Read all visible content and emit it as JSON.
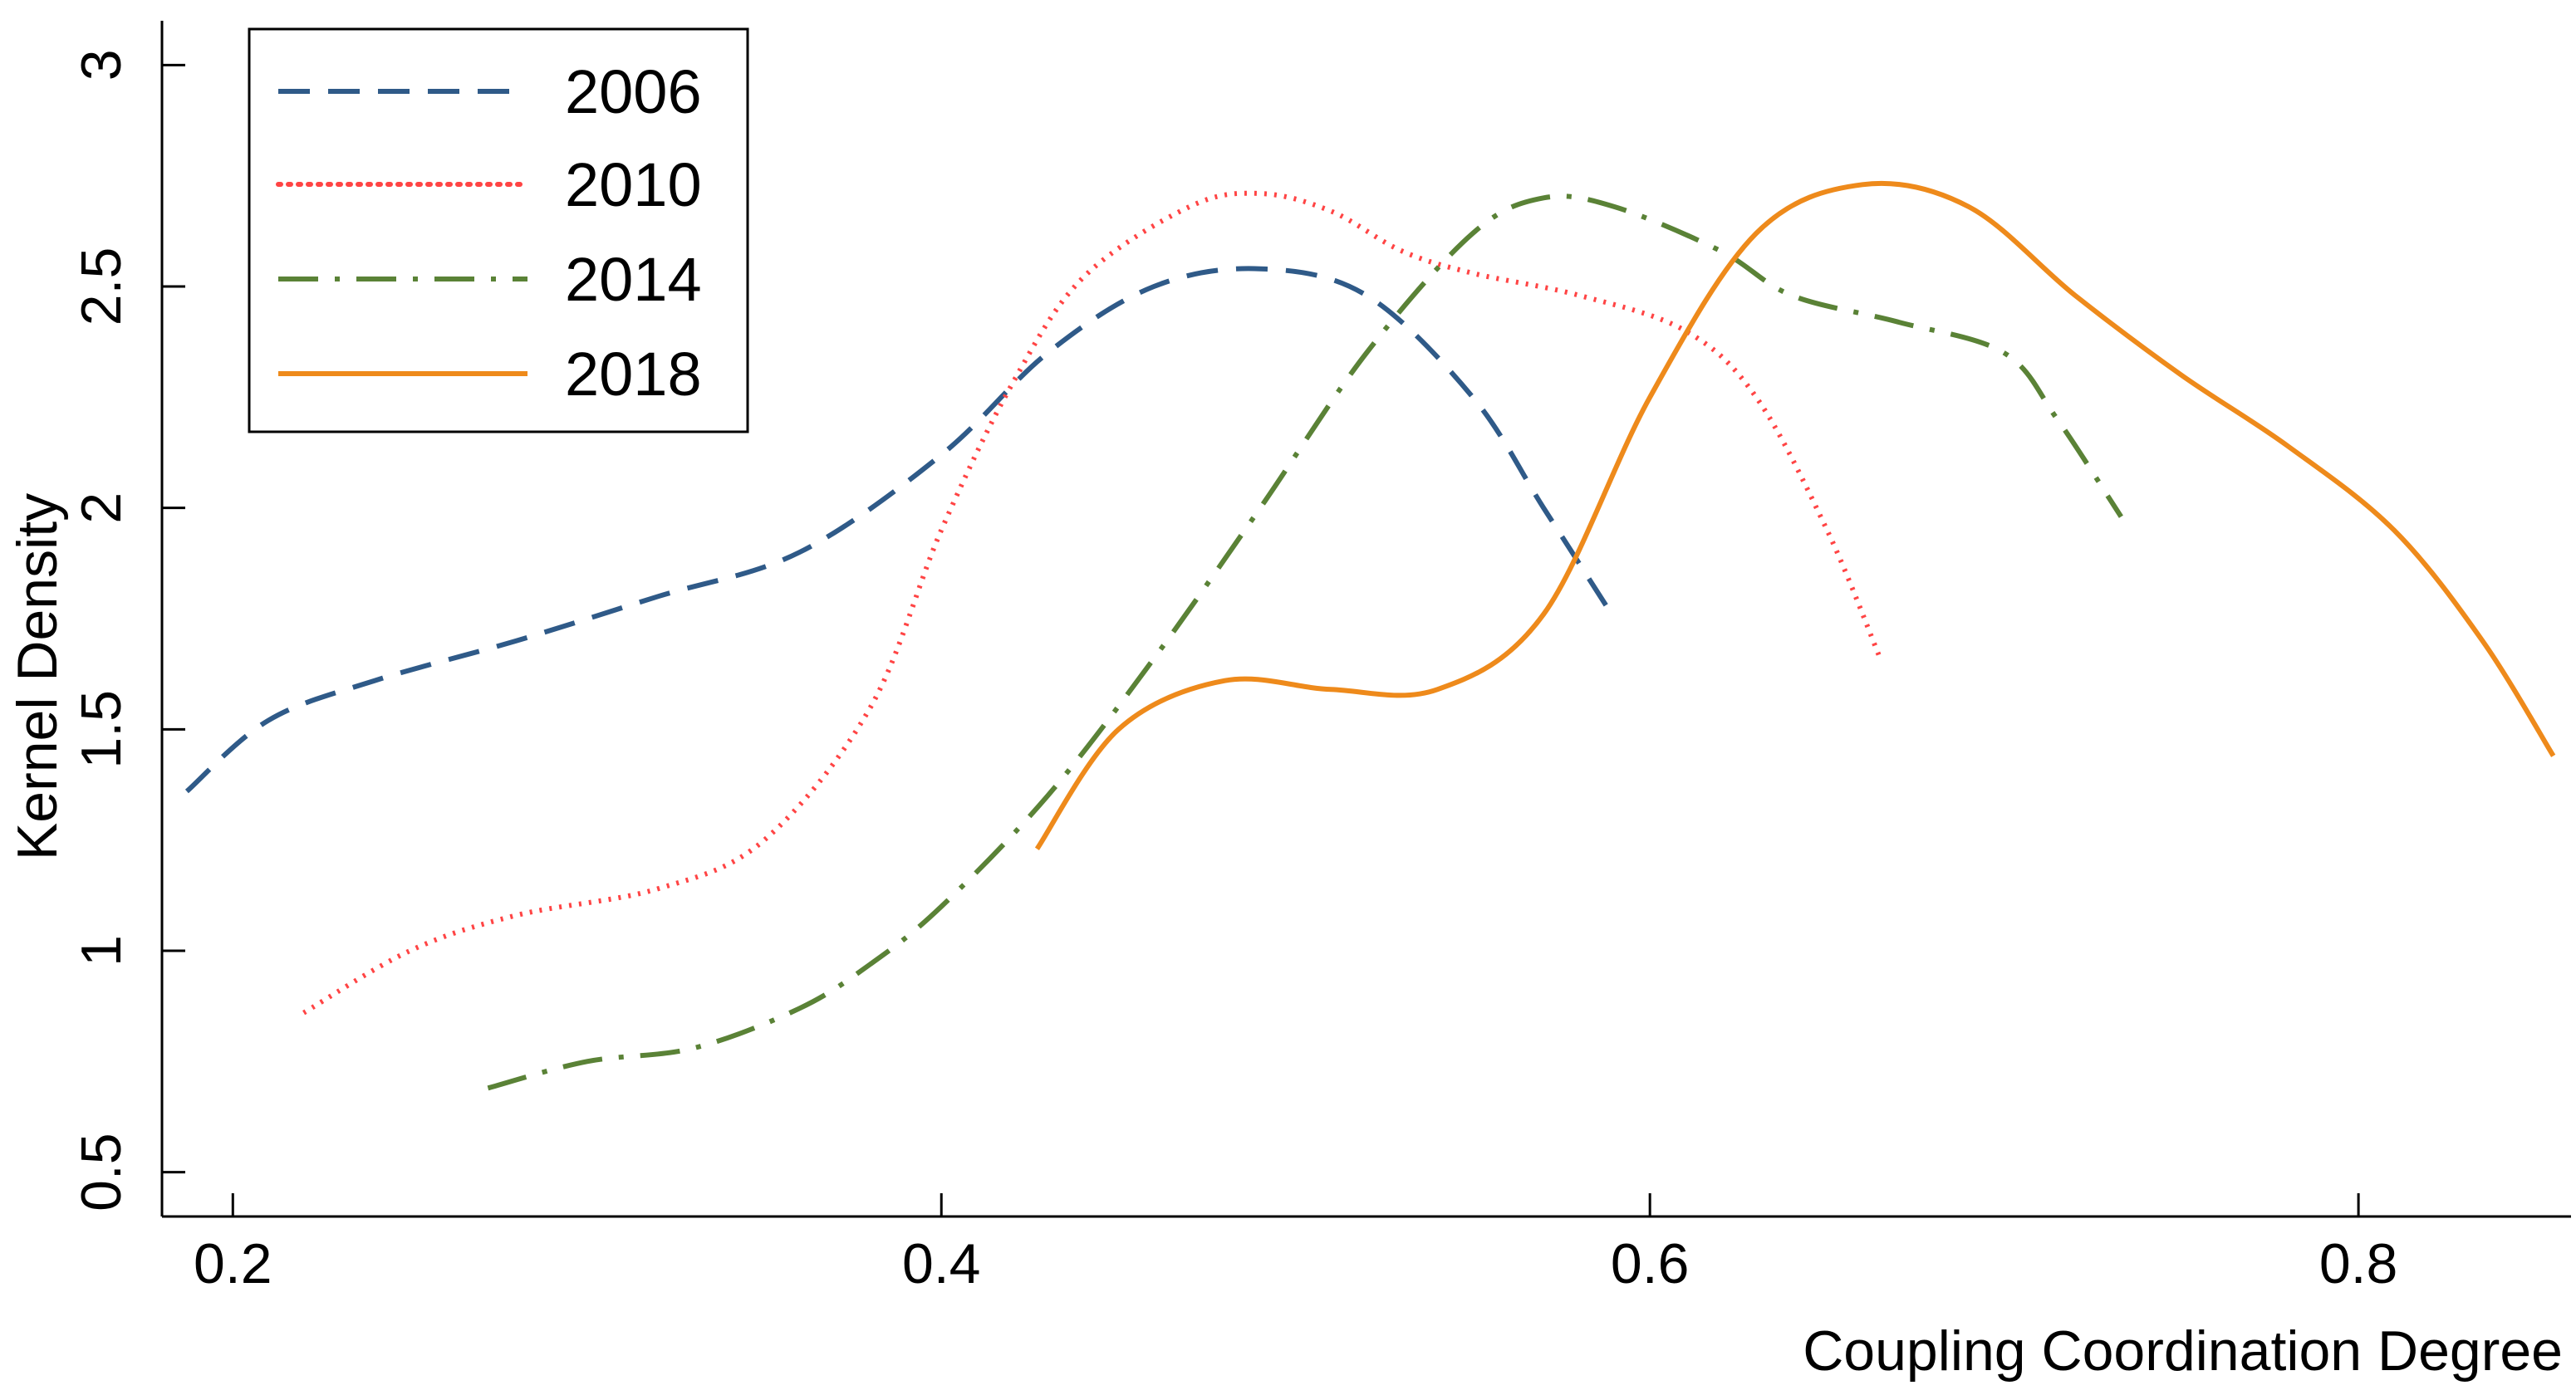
{
  "chart_data": {
    "type": "line",
    "title": "",
    "xlabel": "Coupling Coordination Degree",
    "ylabel": "Kernel Density",
    "xlim": [
      0.18,
      0.86
    ],
    "ylim": [
      0.4,
      3.1
    ],
    "x_ticks": [
      {
        "value": 0.2,
        "label": "0.2"
      },
      {
        "value": 0.4,
        "label": "0.4"
      },
      {
        "value": 0.6,
        "label": "0.6"
      },
      {
        "value": 0.8,
        "label": "0.8"
      }
    ],
    "y_ticks": [
      {
        "value": 0.5,
        "label": "0.5"
      },
      {
        "value": 1.0,
        "label": "1"
      },
      {
        "value": 1.5,
        "label": "1.5"
      },
      {
        "value": 2.0,
        "label": "2"
      },
      {
        "value": 2.5,
        "label": "2.5"
      },
      {
        "value": 3.0,
        "label": "3"
      }
    ],
    "grid": false,
    "legend_position": "top-left",
    "series": [
      {
        "name": "2006",
        "color": "#2F5A88",
        "style": "dashed",
        "points": [
          [
            0.187,
            1.36
          ],
          [
            0.21,
            1.52
          ],
          [
            0.24,
            1.61
          ],
          [
            0.28,
            1.7
          ],
          [
            0.32,
            1.8
          ],
          [
            0.36,
            1.9
          ],
          [
            0.4,
            2.12
          ],
          [
            0.43,
            2.35
          ],
          [
            0.46,
            2.5
          ],
          [
            0.49,
            2.54
          ],
          [
            0.52,
            2.48
          ],
          [
            0.55,
            2.25
          ],
          [
            0.57,
            2.0
          ],
          [
            0.59,
            1.75
          ]
        ]
      },
      {
        "name": "2010",
        "color": "#FF4444",
        "style": "dotted",
        "points": [
          [
            0.22,
            0.86
          ],
          [
            0.25,
            1.0
          ],
          [
            0.28,
            1.08
          ],
          [
            0.32,
            1.14
          ],
          [
            0.35,
            1.25
          ],
          [
            0.38,
            1.55
          ],
          [
            0.4,
            1.95
          ],
          [
            0.42,
            2.28
          ],
          [
            0.44,
            2.52
          ],
          [
            0.47,
            2.68
          ],
          [
            0.49,
            2.71
          ],
          [
            0.51,
            2.67
          ],
          [
            0.53,
            2.58
          ],
          [
            0.55,
            2.53
          ],
          [
            0.58,
            2.48
          ],
          [
            0.61,
            2.4
          ],
          [
            0.63,
            2.25
          ],
          [
            0.65,
            1.95
          ],
          [
            0.665,
            1.66
          ]
        ]
      },
      {
        "name": "2014",
        "color": "#5A8236",
        "style": "dashdot",
        "points": [
          [
            0.272,
            0.69
          ],
          [
            0.3,
            0.75
          ],
          [
            0.33,
            0.78
          ],
          [
            0.36,
            0.87
          ],
          [
            0.38,
            0.97
          ],
          [
            0.4,
            1.1
          ],
          [
            0.43,
            1.35
          ],
          [
            0.46,
            1.66
          ],
          [
            0.49,
            2.0
          ],
          [
            0.52,
            2.35
          ],
          [
            0.55,
            2.62
          ],
          [
            0.57,
            2.7
          ],
          [
            0.59,
            2.68
          ],
          [
            0.62,
            2.58
          ],
          [
            0.64,
            2.48
          ],
          [
            0.67,
            2.42
          ],
          [
            0.7,
            2.35
          ],
          [
            0.715,
            2.2
          ],
          [
            0.733,
            1.98
          ]
        ]
      },
      {
        "name": "2018",
        "color": "#EE8A1B",
        "style": "solid",
        "points": [
          [
            0.427,
            1.23
          ],
          [
            0.45,
            1.5
          ],
          [
            0.48,
            1.61
          ],
          [
            0.51,
            1.59
          ],
          [
            0.54,
            1.59
          ],
          [
            0.57,
            1.76
          ],
          [
            0.6,
            2.25
          ],
          [
            0.63,
            2.62
          ],
          [
            0.66,
            2.73
          ],
          [
            0.69,
            2.68
          ],
          [
            0.72,
            2.48
          ],
          [
            0.75,
            2.3
          ],
          [
            0.78,
            2.14
          ],
          [
            0.81,
            1.95
          ],
          [
            0.835,
            1.7
          ],
          [
            0.855,
            1.44
          ]
        ]
      }
    ]
  }
}
